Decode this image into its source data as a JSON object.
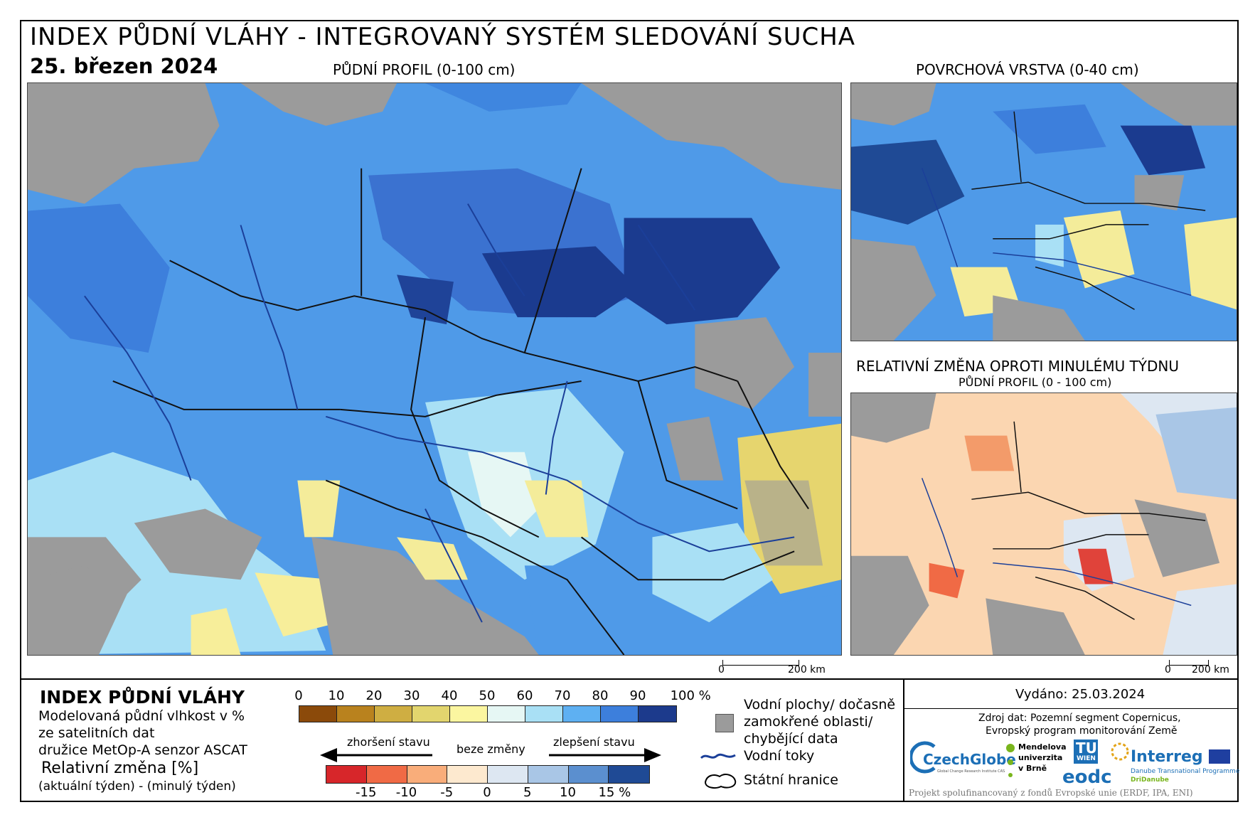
{
  "header": {
    "title": "INDEX PŮDNÍ VLÁHY - INTEGROVANÝ SYSTÉM SLEDOVÁNÍ SUCHA",
    "date": "25. březen 2024"
  },
  "maps": {
    "main_label": "PŮDNÍ PROFIL (0-100 cm)",
    "surface_label": "POVRCHOVÁ VRSTVA (0-40 cm)",
    "change_label": "RELATIVNÍ ZMĚNA OPROTI MINULÉMU TÝDNU",
    "change_sublabel": "PŮDNÍ PROFIL (0 - 100 cm)",
    "scale_main": {
      "zero": "0",
      "end": "200 km"
    },
    "scale_small": {
      "zero": "0",
      "end": "200 km"
    }
  },
  "legend": {
    "title": "INDEX PŮDNÍ VLÁHY",
    "desc1": "Modelovaná půdní vlhkost v %",
    "desc2": "ze satelitních dat",
    "desc3": "družice MetOp-A senzor ASCAT",
    "rel_title": "Relativní změna [%]",
    "rel_desc": "(aktuální týden) - (minulý týden)",
    "index_ticks": [
      "0",
      "10",
      "20",
      "30",
      "40",
      "50",
      "60",
      "70",
      "80",
      "90",
      "100 %"
    ],
    "index_colors": [
      "#8b4a0a",
      "#b9821e",
      "#cfae42",
      "#e2d56e",
      "#fbf6a0",
      "#e6f7f4",
      "#a9e0f5",
      "#5eb0f2",
      "#3d7fdc",
      "#1c3a8c"
    ],
    "change_ticks": [
      "-15",
      "-10",
      "-5",
      "0",
      "5",
      "10",
      "15 %"
    ],
    "change_colors": [
      "#d7262a",
      "#f06a45",
      "#f9ad7a",
      "#fde9cf",
      "#dde7f2",
      "#a9c6e6",
      "#5b8fcf",
      "#1f4a95"
    ],
    "arrow_left": "zhoršení stavu",
    "arrow_mid": "beze změny",
    "arrow_right": "zlepšení stavu",
    "water_areas": "Vodní plochy/ dočasně zamokřené oblasti/ chybějící data",
    "water_areas_l1": "Vodní plochy/ dočasně",
    "water_areas_l2": "zamokřené oblasti/",
    "water_areas_l3": "chybějící data",
    "rivers": "Vodní toky",
    "borders": "Státní hranice",
    "colors": {
      "gray": "#9b9b9b",
      "river": "#1b3f99"
    }
  },
  "info": {
    "issued": "Vydáno: 25.03.2024",
    "source1": "Zdroj dat: Pozemní segment Copernicus,",
    "source2": "Evropský program monitorování Země",
    "logo_czechglobe": "CzechGlobe",
    "logo_czechglobe_sub": "Global Change Research Institute CAS",
    "logo_mendel1": "Mendelova",
    "logo_mendel2": "univerzita",
    "logo_mendel3": "v Brně",
    "logo_tu": "TU",
    "logo_tu_sub": "WIEN",
    "logo_eodc": "eodc",
    "logo_interreg": "Interreg",
    "logo_interreg_sub1": "Danube Transnational Programme",
    "logo_interreg_sub2": "DriDanube",
    "footer": "Projekt spolufinancovaný z fondů Evropské unie (ERDF, IPA, ENI)"
  }
}
